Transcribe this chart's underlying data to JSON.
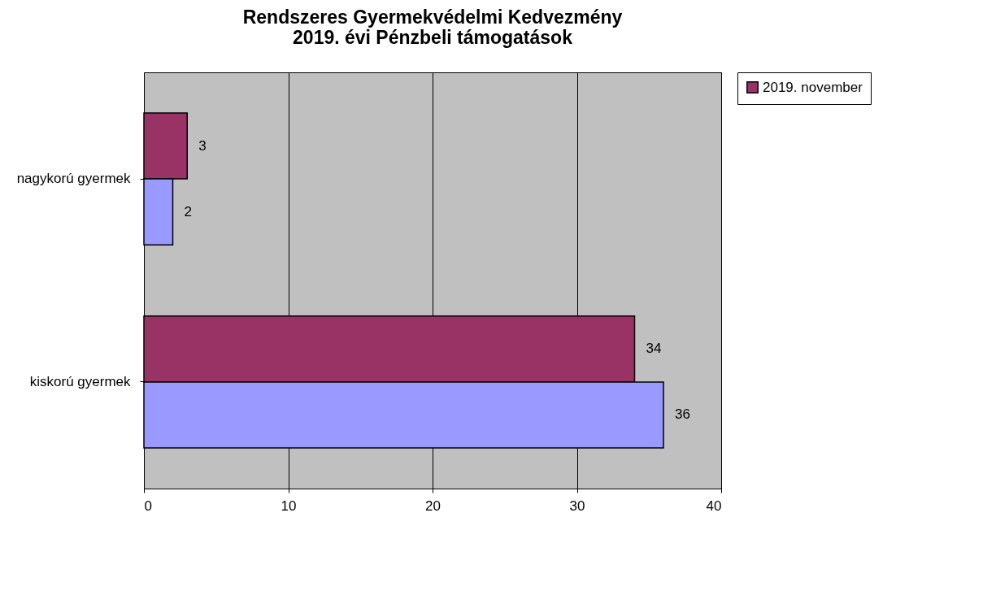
{
  "chart_data": {
    "type": "bar",
    "orientation": "horizontal",
    "title": [
      "Rendszeres Gyermekvédelmi Kedvezmény",
      "2019. évi Pénzbeli támogatások"
    ],
    "categories": [
      "nagykorú gyermek",
      "kiskorú gyermek"
    ],
    "series": [
      {
        "name": "2019. november",
        "color": "#993366",
        "values": [
          3,
          34
        ]
      },
      {
        "color": "#9999ff",
        "values": [
          2,
          36
        ]
      }
    ],
    "xlim": [
      0,
      40
    ],
    "xticks": [
      0,
      10,
      20,
      30,
      40
    ],
    "grid": "x",
    "legend": "right",
    "data_labels": true
  }
}
